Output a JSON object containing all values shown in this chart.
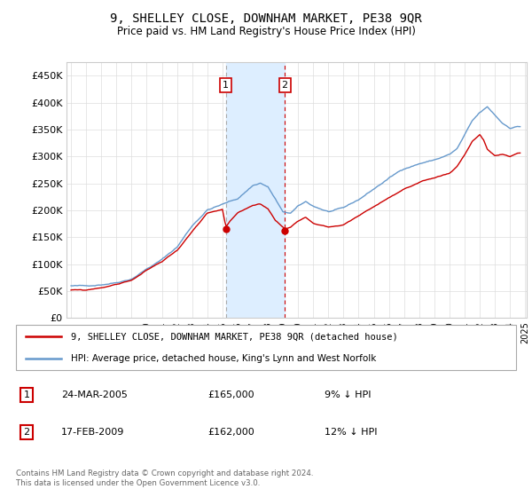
{
  "title": "9, SHELLEY CLOSE, DOWNHAM MARKET, PE38 9QR",
  "subtitle": "Price paid vs. HM Land Registry's House Price Index (HPI)",
  "legend_line1": "9, SHELLEY CLOSE, DOWNHAM MARKET, PE38 9QR (detached house)",
  "legend_line2": "HPI: Average price, detached house, King's Lynn and West Norfolk",
  "transaction1_date": "24-MAR-2005",
  "transaction1_price": "£165,000",
  "transaction1_hpi": "9% ↓ HPI",
  "transaction2_date": "17-FEB-2009",
  "transaction2_price": "£162,000",
  "transaction2_hpi": "12% ↓ HPI",
  "footer": "Contains HM Land Registry data © Crown copyright and database right 2024.\nThis data is licensed under the Open Government Licence v3.0.",
  "red_color": "#cc0000",
  "blue_color": "#6699cc",
  "shaded_color": "#ddeeff",
  "ylim": [
    0,
    475000
  ],
  "yticks": [
    0,
    50000,
    100000,
    150000,
    200000,
    250000,
    300000,
    350000,
    400000,
    450000
  ],
  "ytick_labels": [
    "£0",
    "£50K",
    "£100K",
    "£150K",
    "£200K",
    "£250K",
    "£300K",
    "£350K",
    "£400K",
    "£450K"
  ],
  "transaction1_year": 2005.23,
  "transaction2_year": 2009.12,
  "transaction1_price_val": 165000,
  "transaction2_price_val": 162000
}
